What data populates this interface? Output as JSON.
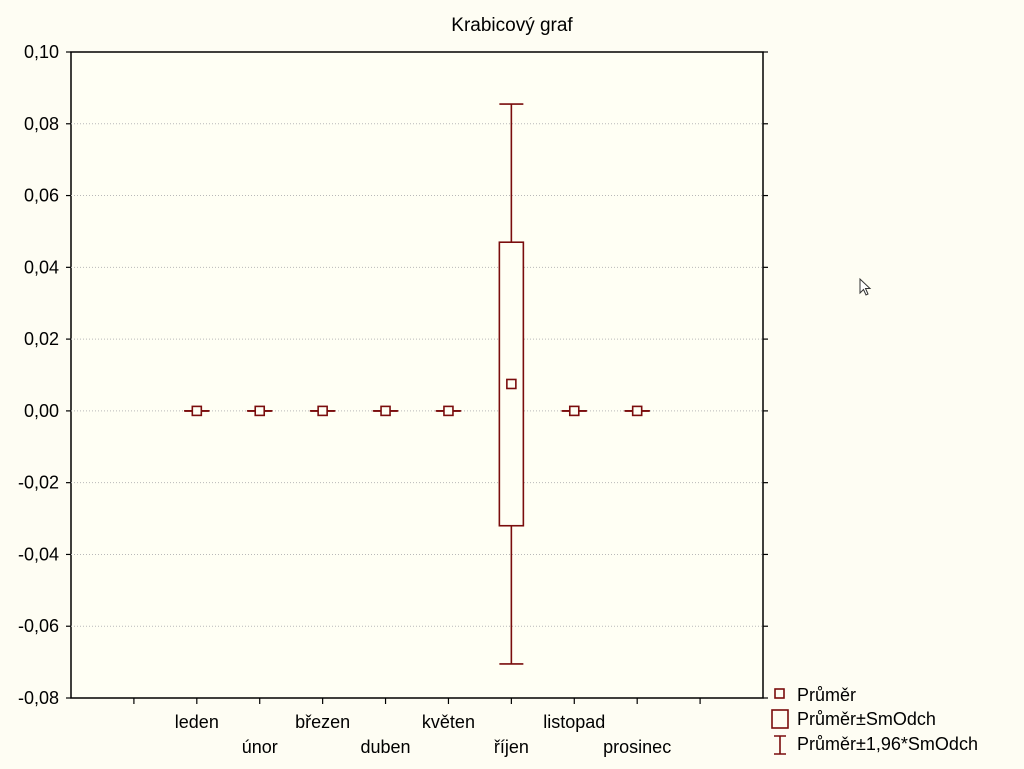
{
  "colors": {
    "series": "#7a0d0d",
    "background": "#fefdf3",
    "plot_background": "#fffff4"
  },
  "cursor_icon": "mouse-pointer-icon",
  "chart_data": {
    "type": "box",
    "title": "Krabicový graf",
    "xlabel": "",
    "ylabel": "",
    "ylim": [
      -0.08,
      0.1
    ],
    "yticks": [
      -0.08,
      -0.06,
      -0.04,
      -0.02,
      0.0,
      0.02,
      0.04,
      0.06,
      0.08,
      0.1
    ],
    "ytick_labels": [
      "-0,08",
      "-0,06",
      "-0,04",
      "-0,02",
      "0,00",
      "0,02",
      "0,04",
      "0,06",
      "0,08",
      "0,10"
    ],
    "grid": "horizontal",
    "categories": [
      "leden",
      "únor",
      "březen",
      "duben",
      "květen",
      "říjen",
      "listopad",
      "prosinec"
    ],
    "category_positions": [
      2,
      3,
      4,
      5,
      6,
      7,
      8,
      9
    ],
    "x_tick_positions": [
      1,
      2,
      3,
      4,
      5,
      6,
      7,
      8,
      9,
      10
    ],
    "boxes": [
      {
        "category": "leden",
        "mean": 0.0,
        "box_low": 0.0,
        "box_high": 0.0,
        "whisker_low": 0.0,
        "whisker_high": 0.0
      },
      {
        "category": "únor",
        "mean": 0.0,
        "box_low": 0.0,
        "box_high": 0.0,
        "whisker_low": 0.0,
        "whisker_high": 0.0
      },
      {
        "category": "březen",
        "mean": 0.0,
        "box_low": 0.0,
        "box_high": 0.0,
        "whisker_low": 0.0,
        "whisker_high": 0.0
      },
      {
        "category": "duben",
        "mean": 0.0,
        "box_low": 0.0,
        "box_high": 0.0,
        "whisker_low": 0.0,
        "whisker_high": 0.0
      },
      {
        "category": "květen",
        "mean": 0.0,
        "box_low": 0.0,
        "box_high": 0.0,
        "whisker_low": 0.0,
        "whisker_high": 0.0
      },
      {
        "category": "říjen",
        "mean": 0.0075,
        "box_low": -0.032,
        "box_high": 0.047,
        "whisker_low": -0.0705,
        "whisker_high": 0.0855
      },
      {
        "category": "listopad",
        "mean": 0.0,
        "box_low": 0.0,
        "box_high": 0.0,
        "whisker_low": 0.0,
        "whisker_high": 0.0
      },
      {
        "category": "prosinec",
        "mean": 0.0,
        "box_low": 0.0,
        "box_high": 0.0,
        "whisker_low": 0.0,
        "whisker_high": 0.0
      }
    ],
    "legend": {
      "placement": "bottom-right",
      "entries": [
        {
          "label": "Průměr",
          "symbol": "small-square"
        },
        {
          "label": "Průměr±SmOdch",
          "symbol": "box"
        },
        {
          "label": "Průměr±1,96*SmOdch",
          "symbol": "whisker"
        }
      ]
    }
  }
}
